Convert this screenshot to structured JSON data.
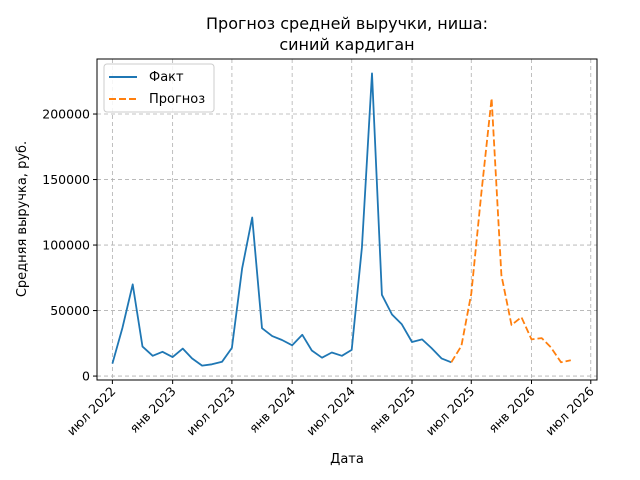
{
  "chart_data": {
    "type": "line",
    "title_line1": "Прогноз средней выручки, ниша:",
    "title_line2": "синий кардиган",
    "xlabel": "Дата",
    "ylabel": "Средняя выручка, руб.",
    "x_range": [
      "2022-05-15",
      "2026-07-20"
    ],
    "ylim": [
      -3000,
      242000
    ],
    "grid": true,
    "grid_style": "dashed",
    "legend_position": "top-left",
    "x_ticks": [
      {
        "date": "2022-07-01",
        "label": "июл 2022"
      },
      {
        "date": "2023-01-01",
        "label": "янв 2023"
      },
      {
        "date": "2023-07-01",
        "label": "июл 2023"
      },
      {
        "date": "2024-01-01",
        "label": "янв 2024"
      },
      {
        "date": "2024-07-01",
        "label": "июл 2024"
      },
      {
        "date": "2025-01-01",
        "label": "янв 2025"
      },
      {
        "date": "2025-07-01",
        "label": "июл 2025"
      },
      {
        "date": "2026-01-01",
        "label": "янв 2026"
      },
      {
        "date": "2026-07-01",
        "label": "июл 2026"
      }
    ],
    "y_ticks": [
      {
        "value": 0,
        "label": "0"
      },
      {
        "value": 50000,
        "label": "50000"
      },
      {
        "value": 100000,
        "label": "100000"
      },
      {
        "value": 150000,
        "label": "150000"
      },
      {
        "value": 200000,
        "label": "200000"
      }
    ],
    "series": [
      {
        "name": "Факт",
        "color": "#1f77b4",
        "style": "solid",
        "points": [
          [
            "2022-07-01",
            9500
          ],
          [
            "2022-08-01",
            37000
          ],
          [
            "2022-09-01",
            70000
          ],
          [
            "2022-10-01",
            22500
          ],
          [
            "2022-11-01",
            15500
          ],
          [
            "2022-12-01",
            18500
          ],
          [
            "2023-01-01",
            14500
          ],
          [
            "2023-02-01",
            21000
          ],
          [
            "2023-03-01",
            13500
          ],
          [
            "2023-04-01",
            8000
          ],
          [
            "2023-05-01",
            9000
          ],
          [
            "2023-06-01",
            11000
          ],
          [
            "2023-07-01",
            21500
          ],
          [
            "2023-08-01",
            82000
          ],
          [
            "2023-09-01",
            121000
          ],
          [
            "2023-10-01",
            36500
          ],
          [
            "2023-11-01",
            30500
          ],
          [
            "2023-12-01",
            27500
          ],
          [
            "2024-01-01",
            23500
          ],
          [
            "2024-02-01",
            31500
          ],
          [
            "2024-03-01",
            19500
          ],
          [
            "2024-04-01",
            14000
          ],
          [
            "2024-05-01",
            18000
          ],
          [
            "2024-06-01",
            15500
          ],
          [
            "2024-07-01",
            20000
          ],
          [
            "2024-08-01",
            98000
          ],
          [
            "2024-09-01",
            231000
          ],
          [
            "2024-10-01",
            62000
          ],
          [
            "2024-11-01",
            47000
          ],
          [
            "2024-12-01",
            39500
          ],
          [
            "2025-01-01",
            26000
          ],
          [
            "2025-02-01",
            28000
          ],
          [
            "2025-03-01",
            21500
          ],
          [
            "2025-04-01",
            13500
          ],
          [
            "2025-05-01",
            10500
          ]
        ]
      },
      {
        "name": "Прогноз",
        "color": "#ff7f0e",
        "style": "dashed",
        "points": [
          [
            "2025-05-01",
            10500
          ],
          [
            "2025-06-01",
            23000
          ],
          [
            "2025-07-01",
            63000
          ],
          [
            "2025-08-01",
            140000
          ],
          [
            "2025-09-01",
            212000
          ],
          [
            "2025-10-01",
            77000
          ],
          [
            "2025-11-01",
            39000
          ],
          [
            "2025-12-01",
            45000
          ],
          [
            "2026-01-01",
            28000
          ],
          [
            "2026-02-01",
            29000
          ],
          [
            "2026-03-01",
            22000
          ],
          [
            "2026-04-01",
            10500
          ],
          [
            "2026-05-01",
            12000
          ]
        ]
      }
    ]
  }
}
